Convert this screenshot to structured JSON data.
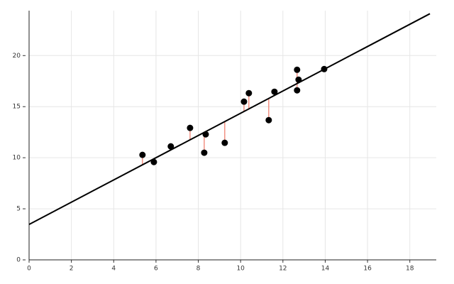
{
  "chart_data": {
    "type": "scatter",
    "x": [
      5.36,
      5.9,
      6.7,
      7.61,
      8.35,
      8.28,
      9.25,
      10.16,
      10.39,
      11.33,
      11.6,
      12.67,
      12.74,
      12.67,
      13.95
    ],
    "y": [
      10.28,
      9.58,
      11.11,
      12.92,
      12.29,
      10.49,
      11.46,
      15.49,
      16.32,
      13.68,
      16.46,
      18.61,
      17.64,
      16.6,
      18.68
    ],
    "color": "#000000",
    "fit_line": {
      "x": [
        0,
        18.95
      ],
      "y": [
        3.47,
        24.1
      ],
      "color": "#000000"
    },
    "residual_color": "#f08070",
    "xlim": [
      0,
      19.25
    ],
    "ylim": [
      0,
      24.4
    ],
    "xticks": [
      0,
      2,
      4,
      6,
      8,
      10,
      12,
      14,
      16,
      18
    ],
    "yticks": [
      0,
      5,
      10,
      15,
      20
    ],
    "grid": true
  }
}
